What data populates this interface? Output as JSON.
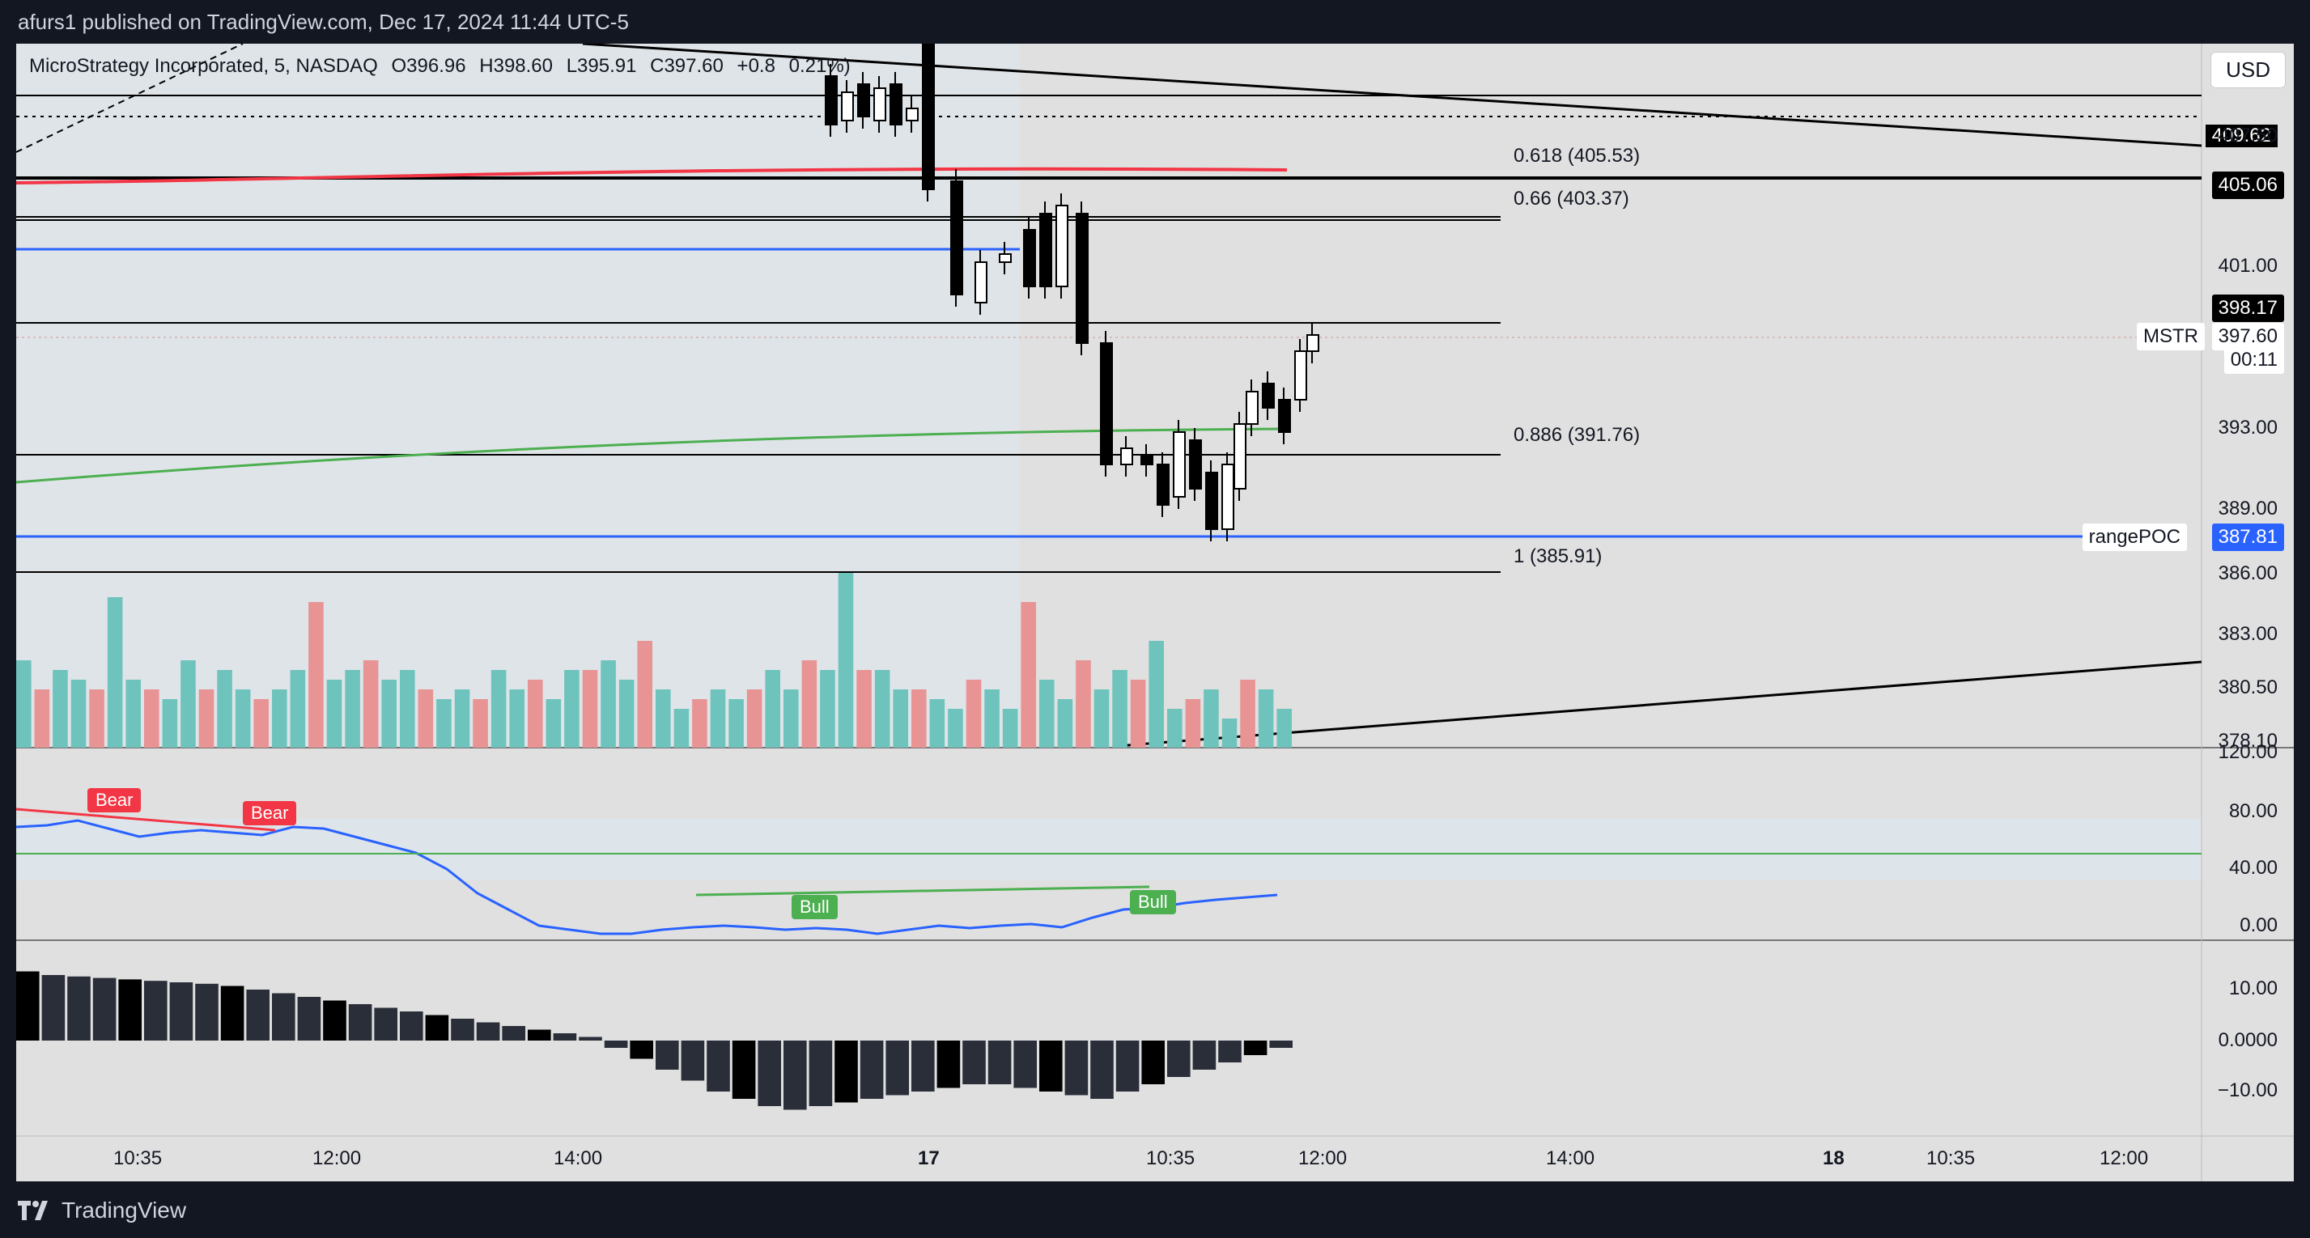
{
  "header": {
    "published": "afurs1 published on TradingView.com, Dec 17, 2024 11:44 UTC-5"
  },
  "legend": {
    "symbol": "MicroStrategy Incorporated, 5, NASDAQ",
    "open": "O396.96",
    "high": "H398.60",
    "low": "L395.91",
    "close": "C397.60",
    "change": "+0.8",
    "change_pct": "0.21%)"
  },
  "currency": "USD",
  "price_axis": {
    "labels": [
      "407.50",
      "401.00",
      "393.00",
      "389.00",
      "386.00",
      "383.00",
      "380.50",
      "378.10"
    ],
    "top_label": "409.62"
  },
  "price_tags": {
    "level_405": "405.06",
    "level_398": "398.17",
    "symbol": "MSTR",
    "last_price": "397.60",
    "countdown": "00:11",
    "poc_label": "rangePOC",
    "poc_value": "387.81"
  },
  "fib_levels": [
    {
      "label": "0.618 (405.53)"
    },
    {
      "label": "0.66 (403.37)"
    },
    {
      "label": "0.886 (391.76)"
    },
    {
      "label": "1 (385.91)"
    }
  ],
  "rsi": {
    "axis": [
      "120.00",
      "80.00",
      "40.00",
      "0.00"
    ],
    "signals": [
      {
        "label": "Bear",
        "color": "#f23645"
      },
      {
        "label": "Bear",
        "color": "#f23645"
      },
      {
        "label": "Bull",
        "color": "#4caf50"
      },
      {
        "label": "Bull",
        "color": "#4caf50"
      }
    ]
  },
  "macd": {
    "axis": [
      "10.00",
      "0.0000",
      "−10.00"
    ]
  },
  "time_axis": [
    "10:35",
    "12:00",
    "14:00",
    "17",
    "10:35",
    "12:00",
    "14:00",
    "18",
    "10:35",
    "12:00"
  ],
  "footer": {
    "brand": "TradingView"
  },
  "colors": {
    "up": "#ffffff",
    "down": "#000000",
    "volume_up": "#6fc3bd",
    "volume_down": "#e89394",
    "rsi_line": "#2962ff",
    "poc": "#2962ff",
    "ema_red": "#f23645",
    "ema_green": "#4caf50"
  }
}
